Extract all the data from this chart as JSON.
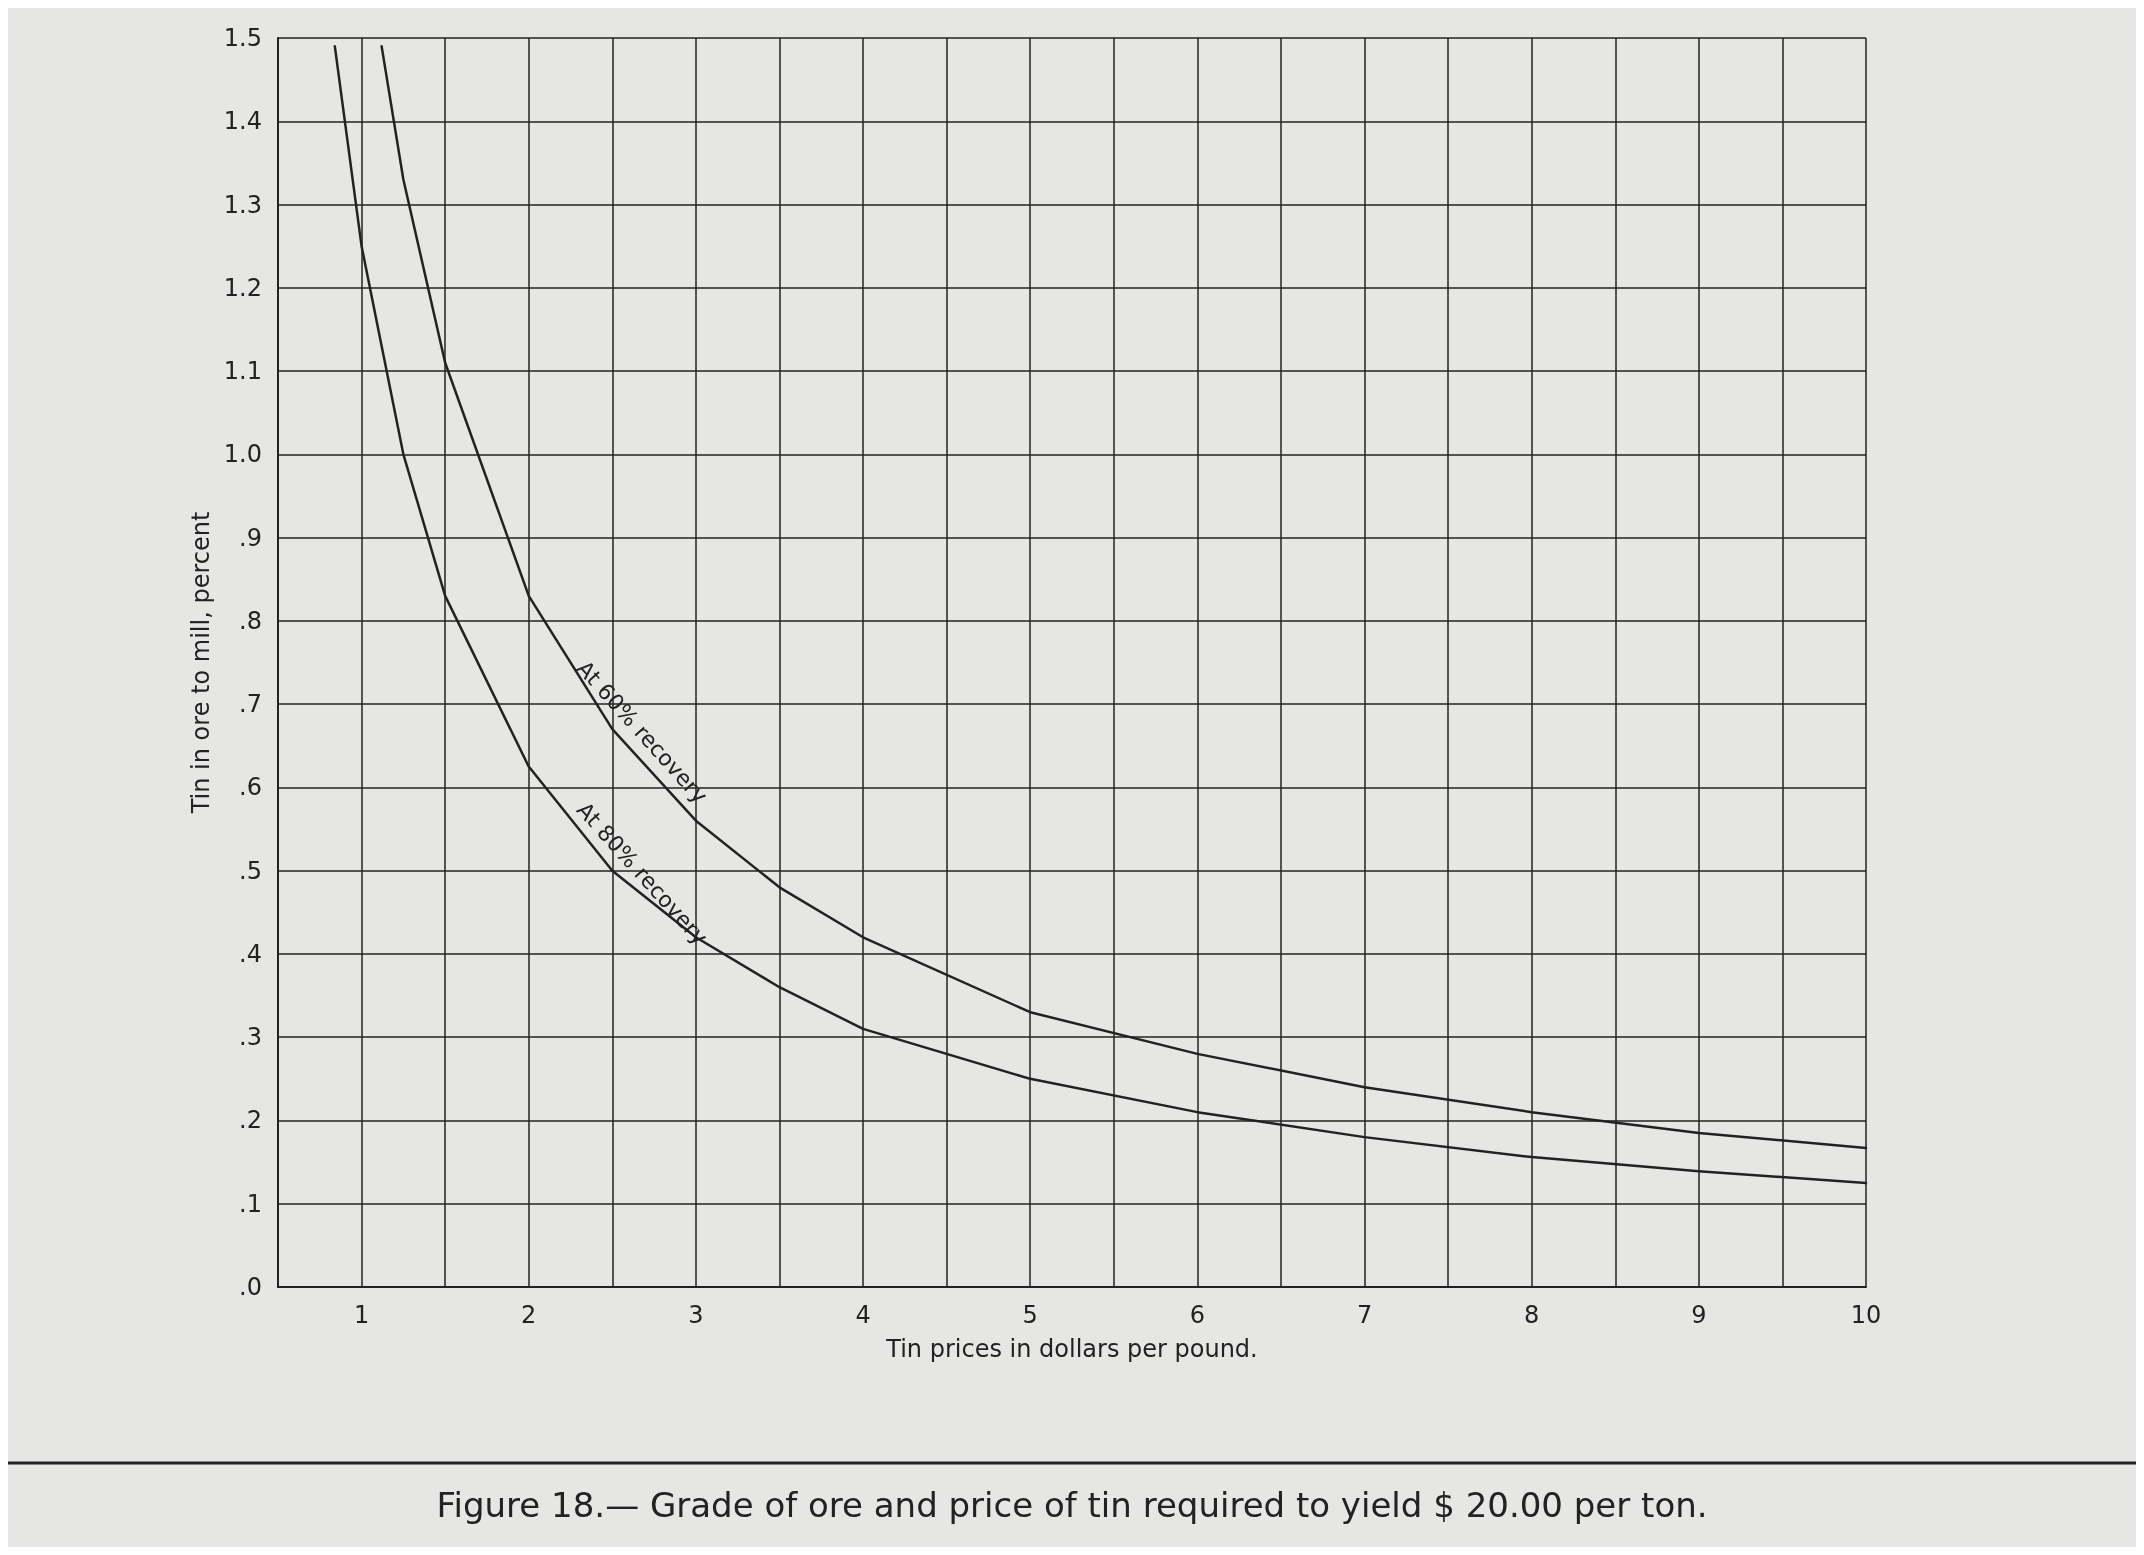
{
  "chart_data": {
    "type": "line",
    "title": "Figure 18.— Grade of ore and price of tin required to yield $ 20.00 per ton.",
    "xlabel": "Tin prices in dollars per pound.",
    "ylabel": "Tin in ore to mill, percent",
    "grid": true,
    "marker": "none",
    "line_style": "solid",
    "xlim": [
      0.5,
      10
    ],
    "ylim": [
      0,
      1.5
    ],
    "xticks": [
      {
        "value": 0.5,
        "label": null
      },
      1,
      {
        "value": 1.5,
        "label": null
      },
      2,
      {
        "value": 2.5,
        "label": null
      },
      3,
      {
        "value": 3.5,
        "label": null
      },
      4,
      {
        "value": 4.5,
        "label": null
      },
      5,
      {
        "value": 5.5,
        "label": null
      },
      6,
      {
        "value": 6.5,
        "label": null
      },
      7,
      {
        "value": 7.5,
        "label": null
      },
      8,
      {
        "value": 8.5,
        "label": null
      },
      9,
      {
        "value": 9.5,
        "label": null
      },
      10
    ],
    "yticks": [
      {
        "value": 0,
        "label": ".0"
      },
      {
        "value": 0.1,
        "label": ".1"
      },
      {
        "value": 0.2,
        "label": ".2"
      },
      {
        "value": 0.3,
        "label": ".3"
      },
      {
        "value": 0.4,
        "label": ".4"
      },
      {
        "value": 0.5,
        "label": ".5"
      },
      {
        "value": 0.6,
        "label": ".6"
      },
      {
        "value": 0.7,
        "label": ".7"
      },
      {
        "value": 0.8,
        "label": ".8"
      },
      {
        "value": 0.9,
        "label": ".9"
      },
      {
        "value": 1,
        "label": "1.0"
      },
      1.1,
      1.2,
      1.3,
      1.4,
      1.5
    ],
    "series": [
      {
        "name": "At 60% recovery",
        "color": "#222222",
        "x": [
          1.12,
          1.25,
          1.5,
          2,
          2.5,
          3,
          3.5,
          4,
          5,
          6,
          7,
          8,
          9,
          10
        ],
        "values": [
          1.49,
          1.33,
          1.11,
          0.83,
          0.67,
          0.56,
          0.48,
          0.42,
          0.33,
          0.28,
          0.24,
          0.21,
          0.185,
          0.167
        ]
      },
      {
        "name": "At 80% recovery",
        "color": "#222222",
        "x": [
          0.84,
          1,
          1.25,
          1.5,
          2,
          2.5,
          3,
          3.5,
          4,
          5,
          6,
          7,
          8,
          9,
          10
        ],
        "values": [
          1.49,
          1.25,
          1.0,
          0.83,
          0.625,
          0.5,
          0.42,
          0.36,
          0.31,
          0.25,
          0.21,
          0.18,
          0.156,
          0.139,
          0.125
        ]
      }
    ]
  }
}
